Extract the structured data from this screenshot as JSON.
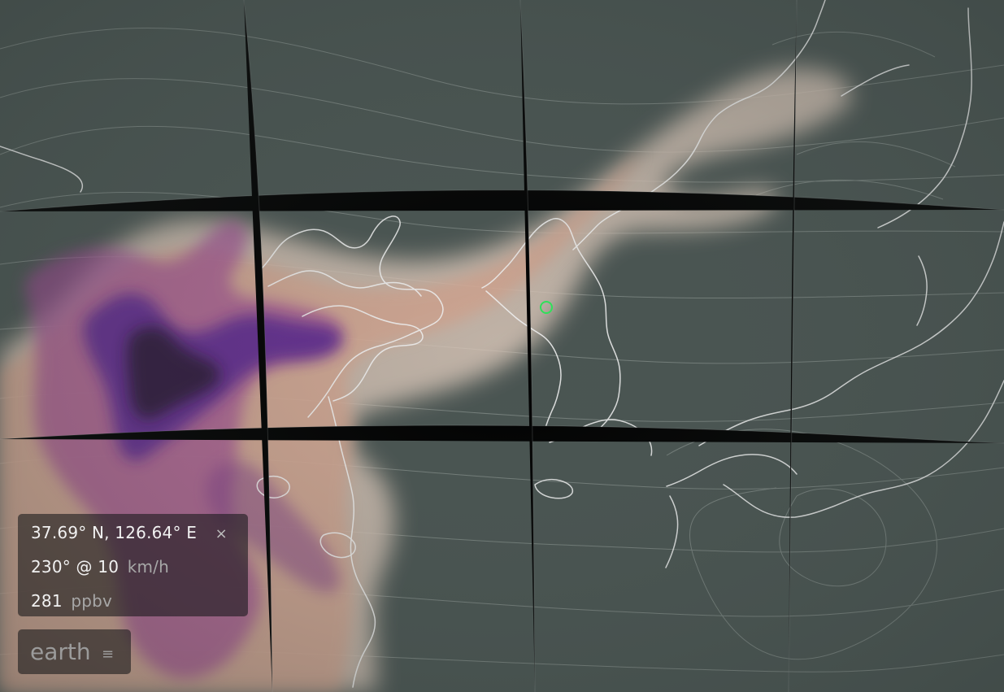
{
  "map": {
    "overlay_colors": {
      "background": "#4a5552",
      "pale_plume": "#dac7b9",
      "orange_plume": "#d79b83",
      "magenta_plume": "#9d4a92",
      "purple_plume": "#4c1e8f",
      "dark_core": "#201527",
      "coastline": "#f2f2f2",
      "marker": "#2fe05a"
    },
    "marker_icon": "location-ring-icon"
  },
  "info_panel": {
    "coordinates": "37.69° N, 126.64° E",
    "close_symbol": "×",
    "wind_value": "230° @ 10",
    "wind_unit": "km/h",
    "concentration_value": "281",
    "concentration_unit": "ppbv"
  },
  "menu": {
    "label": "earth",
    "icon_symbol": "≡"
  }
}
